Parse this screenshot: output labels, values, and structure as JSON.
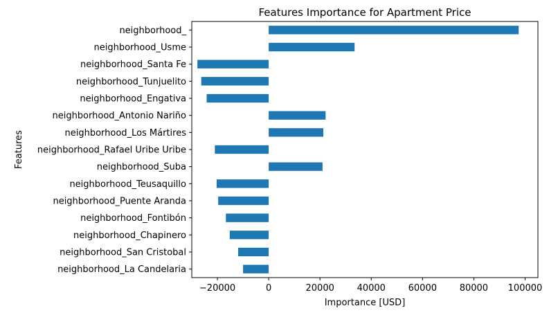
{
  "chart_data": {
    "type": "bar",
    "orientation": "horizontal",
    "title": "Features Importance for Apartment Price",
    "xlabel": "Importance [USD]",
    "ylabel": "Features",
    "xlim": [
      -30000,
      105000
    ],
    "xticks": [
      -20000,
      0,
      20000,
      40000,
      60000,
      80000,
      100000
    ],
    "xtick_labels": [
      "−20000",
      "0",
      "20000",
      "40000",
      "60000",
      "80000",
      "100000"
    ],
    "grid": false,
    "bar_color": "#1f77b4",
    "categories": [
      "neighborhood_",
      "neighborhood_Usme",
      "neighborhood_Santa Fe",
      "neighborhood_Tunjuelito",
      "neighborhood_Engativa",
      "neighborhood_Antonio Nariño",
      "neighborhood_Los Mártires",
      "neighborhood_Rafael Uribe Uribe",
      "neighborhood_Suba",
      "neighborhood_Teusaquillo",
      "neighborhood_Puente Aranda",
      "neighborhood_Fontibón",
      "neighborhood_Chapinero",
      "neighborhood_San Cristobal",
      "neighborhood_La Candelaria"
    ],
    "values": [
      97500,
      33500,
      -27800,
      -26300,
      -24200,
      22200,
      21300,
      -21000,
      21000,
      -20300,
      -19700,
      -16700,
      -15200,
      -11900,
      -10000
    ]
  }
}
